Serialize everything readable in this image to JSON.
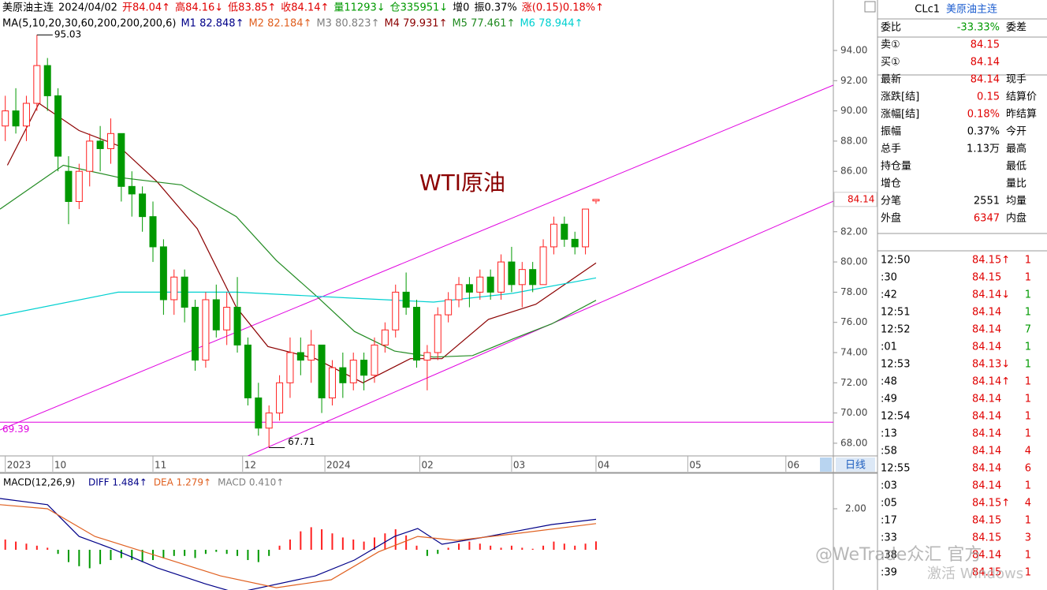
{
  "header": {
    "info": [
      {
        "text": "美原油主连",
        "color": "#000000"
      },
      {
        "text": "2024/04/02",
        "color": "#000000"
      },
      {
        "text": "开84.04↑",
        "color": "#e00000"
      },
      {
        "text": "高84.16↓",
        "color": "#e00000"
      },
      {
        "text": "低83.85↑",
        "color": "#e00000"
      },
      {
        "text": "收84.14↑",
        "color": "#e00000"
      },
      {
        "text": "量11293↓",
        "color": "#009900"
      },
      {
        "text": "仓335951↓",
        "color": "#009900"
      },
      {
        "text": "增0",
        "color": "#000000"
      },
      {
        "text": "振0.37%",
        "color": "#000000"
      },
      {
        "text": "涨(0.15)0.18%↑",
        "color": "#e00000"
      }
    ],
    "ma": [
      {
        "text": "MA(5,10,20,30,60,200,200,200,6)",
        "color": "#000000"
      },
      {
        "text": "M1 82.848↑",
        "color": "#000088"
      },
      {
        "text": "M2 82.184↑",
        "color": "#e06020"
      },
      {
        "text": "M3 80.823↑",
        "color": "#808080"
      },
      {
        "text": "M4 79.931↑",
        "color": "#8b0000"
      },
      {
        "text": "M5 77.461↑",
        "color": "#228b22"
      },
      {
        "text": "M6 78.944↑",
        "color": "#00d0d0"
      }
    ]
  },
  "chart_data": {
    "type": "candlestick",
    "title": "WTI原油",
    "up_color": "#ff2020",
    "down_color": "#009900",
    "xlim": [
      -0.5,
      78.5
    ],
    "ylim": [
      67.16,
      97.34
    ],
    "xticks": [
      {
        "value": 0,
        "label": "2023"
      },
      {
        "value": 4.5,
        "label": "10"
      },
      {
        "value": 14,
        "label": "11"
      },
      {
        "value": 22.5,
        "label": "12"
      },
      {
        "value": 30.3,
        "label": "2024"
      },
      {
        "value": 39.3,
        "label": "02"
      },
      {
        "value": 48,
        "label": "03"
      },
      {
        "value": 56,
        "label": "04"
      },
      {
        "value": 64.7,
        "label": "05"
      },
      {
        "value": 74,
        "label": "06"
      }
    ],
    "yticks": [
      {
        "value": 68,
        "label": "68.00"
      },
      {
        "value": 70,
        "label": "70.00"
      },
      {
        "value": 72,
        "label": "72.00"
      },
      {
        "value": 74,
        "label": "74.00"
      },
      {
        "value": 76,
        "label": "76.00"
      },
      {
        "value": 78,
        "label": "78.00"
      },
      {
        "value": 80,
        "label": "80.00"
      },
      {
        "value": 82,
        "label": "82.00"
      },
      {
        "value": 84,
        "label": "84.00"
      },
      {
        "value": 86,
        "label": "86.00"
      },
      {
        "value": 88,
        "label": "88.00"
      },
      {
        "value": 90,
        "label": "90.00"
      },
      {
        "value": 92,
        "label": "92.00"
      },
      {
        "value": 94,
        "label": "94.00"
      }
    ],
    "candles": {
      "open": [
        89,
        90,
        89,
        90.5,
        93,
        91,
        86,
        84,
        86,
        88,
        87.5,
        88.5,
        85,
        84.5,
        83,
        81,
        77.5,
        79,
        77,
        73.5,
        77.5,
        75.5,
        77,
        74.5,
        71,
        69,
        70,
        72,
        74,
        73.5,
        74.5,
        71,
        73,
        72,
        73.5,
        72.5,
        74.5,
        75.5,
        78,
        77,
        73.5,
        74,
        76.5,
        77.5,
        78.5,
        78,
        79,
        78,
        80,
        78.5,
        79.5,
        78.5,
        81,
        82.5,
        81.5,
        81,
        84.04
      ],
      "high": [
        91,
        91.5,
        91,
        95.03,
        93.5,
        91.5,
        87,
        86.5,
        88.5,
        89,
        89.5,
        88.5,
        86,
        85,
        84,
        81.5,
        79.5,
        79.5,
        77.5,
        78,
        78.5,
        78,
        79,
        75,
        72,
        70.5,
        72.5,
        75,
        75,
        75.5,
        74.5,
        73.5,
        74,
        74,
        74,
        75,
        76,
        78.5,
        79.3,
        77.5,
        74.5,
        77,
        78,
        79,
        79,
        79.5,
        79.5,
        80.5,
        81,
        80,
        80,
        81.5,
        83,
        83,
        82,
        83.5,
        84.16
      ],
      "low": [
        88,
        88.5,
        88,
        90,
        90,
        86,
        82.5,
        83.5,
        85,
        86,
        86.5,
        84,
        83,
        82,
        80,
        76.5,
        76.5,
        76,
        72.8,
        73,
        75,
        74.5,
        74,
        70.5,
        68.5,
        67.71,
        69.5,
        71,
        72.5,
        72,
        70,
        70.5,
        71,
        71.5,
        71.5,
        72,
        74,
        75,
        76.5,
        73,
        71.5,
        73.5,
        76,
        77,
        77,
        77.5,
        77.5,
        77.5,
        78,
        77,
        78,
        78.5,
        80.5,
        81,
        80.5,
        80.5,
        83.85
      ],
      "close": [
        90,
        89,
        90.5,
        93,
        91,
        87,
        84,
        86,
        88,
        87.5,
        88.5,
        85,
        84.5,
        83,
        81,
        77.5,
        79,
        77,
        73.5,
        77.5,
        75.5,
        77,
        74.5,
        71,
        69,
        70,
        72,
        74,
        73.5,
        74.5,
        71,
        73,
        72,
        73.5,
        72.5,
        74.5,
        75.5,
        78,
        77,
        73.5,
        74,
        76.5,
        77.5,
        78.5,
        78,
        79,
        78,
        80,
        78.5,
        79.5,
        78.5,
        81,
        82.5,
        81.5,
        81,
        83.5,
        84.14
      ]
    },
    "moving_averages": [
      {
        "color": "#8b0000",
        "x": [
          0.2,
          3.2,
          7.0,
          10.7,
          14.4,
          18.2,
          21.9,
          24.9,
          29.4,
          33.9,
          38.4,
          41.4,
          45.8,
          50.3,
          56
        ],
        "values": [
          86.4,
          90.5,
          88.7,
          87.7,
          85.3,
          82.2,
          77.0,
          74.4,
          73.6,
          72.0,
          73.6,
          73.6,
          76.2,
          77.2,
          79.931
        ]
      },
      {
        "color": "#228b22",
        "x": [
          -0.5,
          5.5,
          10.7,
          16.7,
          21.9,
          25.7,
          29.4,
          33.1,
          36.9,
          40.6,
          44.3,
          48.1,
          51.8,
          56
        ],
        "values": [
          83.5,
          86.4,
          85.6,
          85.1,
          83.0,
          80.1,
          77.8,
          75.4,
          74.1,
          73.7,
          73.8,
          74.9,
          75.9,
          77.461
        ]
      },
      {
        "color": "#00d0d0",
        "x": [
          -0.5,
          10.7,
          21.9,
          33.1,
          40.6,
          48.1,
          56
        ],
        "values": [
          76.45,
          78.0,
          78.0,
          77.6,
          77.34,
          77.92,
          78.944
        ]
      }
    ],
    "channel_lines": [
      {
        "color": "#e000e0",
        "x": [
          -0.5,
          78.5
        ],
        "values": [
          68.88,
          91.7
        ]
      },
      {
        "color": "#e000e0",
        "x": [
          23,
          78.5
        ],
        "values": [
          67.16,
          84.02
        ]
      }
    ],
    "hline": {
      "value": 69.39,
      "color": "#e000e0"
    },
    "period": "日线"
  },
  "macd": {
    "type": "macd",
    "title": "MACD(12,26,9)",
    "labels": [
      {
        "text": "DIFF 1.484↑",
        "color": "#000088"
      },
      {
        "text": "DEA 1.279↑",
        "color": "#e06020"
      },
      {
        "text": "MACD 0.410↑",
        "color": "#808080"
      }
    ],
    "ylim": [
      -1.96,
      3.73
    ],
    "yticks": [
      {
        "value": 2,
        "label": "2.00"
      }
    ],
    "diff": {
      "color": "#000088",
      "x": [
        -0.5,
        4,
        7,
        10,
        14.4,
        18.9,
        21.9,
        29.4,
        33.1,
        36.9,
        39.1,
        41.4,
        45.8,
        51.8,
        56
      ],
      "values": [
        2.5,
        2.2,
        0.65,
        0.08,
        -0.88,
        -1.65,
        -2.1,
        -1.27,
        -0.5,
        0.65,
        1.04,
        0.27,
        0.65,
        1.23,
        1.484
      ]
    },
    "dea": {
      "color": "#e06020",
      "x": [
        -0.5,
        4,
        8.5,
        14.4,
        20.4,
        25.7,
        30.9,
        35.4,
        39.1,
        42.8,
        48.1,
        56
      ],
      "values": [
        2.2,
        2.0,
        0.65,
        -0.3,
        -1.27,
        -1.85,
        -1.46,
        -0.1,
        0.65,
        0.46,
        0.77,
        1.279
      ]
    },
    "hist": [
      0.5,
      0.4,
      0.3,
      0.2,
      0.1,
      -0.2,
      -0.6,
      -0.8,
      -0.9,
      -0.7,
      -0.5,
      -0.4,
      -0.5,
      -0.6,
      -0.5,
      -0.4,
      -0.3,
      -0.3,
      -0.4,
      -0.2,
      -0.1,
      -0.2,
      -0.3,
      -0.5,
      -0.6,
      -0.3,
      0.2,
      0.5,
      0.9,
      1.1,
      1.0,
      0.8,
      0.6,
      0.5,
      0.4,
      0.6,
      0.8,
      1.0,
      0.7,
      0.2,
      -0.3,
      -0.2,
      0.1,
      0.3,
      0.4,
      0.3,
      0.2,
      0.1,
      0.2,
      0.1,
      0.05,
      0.2,
      0.4,
      0.3,
      0.2,
      0.3,
      0.41
    ]
  },
  "panel": {
    "code": "CLc1",
    "name": "美原油主连",
    "rows": [
      {
        "label": "委比",
        "value": "-33.33%",
        "color": "#009900",
        "label2": "委差"
      },
      {
        "label": "卖①",
        "value": "84.15",
        "color": "#e00000"
      },
      {
        "label": "买①",
        "value": "84.14",
        "color": "#e00000"
      },
      {
        "label": "最新",
        "value": "84.14",
        "color": "#e00000",
        "label2": "现手"
      },
      {
        "label": "涨跌[结]",
        "value": "0.15",
        "color": "#e00000",
        "label2": "结算价"
      },
      {
        "label": "涨幅[结]",
        "value": "0.18%",
        "color": "#e00000",
        "label2": "昨结算"
      },
      {
        "label": "振幅",
        "value": "0.37%",
        "color": "#000000",
        "label2": "今开"
      },
      {
        "label": "总手",
        "value": "1.13万",
        "color": "#000000",
        "label2": "最高"
      },
      {
        "label": "持仓量",
        "label2": "最低"
      },
      {
        "label": "增仓",
        "label2": "量比"
      },
      {
        "label": "分笔",
        "value": "2551",
        "color": "#000000",
        "label2": "均量"
      },
      {
        "label": "外盘",
        "value": "6347",
        "color": "#e00000",
        "label2": "内盘"
      }
    ],
    "trades": [
      {
        "time": "12:50",
        "price": "84.15↑",
        "vol": "1",
        "color": "#e00000"
      },
      {
        "time": ":30",
        "price": "84.15",
        "vol": "1",
        "color": "#e00000"
      },
      {
        "time": ":42",
        "price": "84.14↓",
        "vol": "1",
        "color": "#009900"
      },
      {
        "time": "12:51",
        "price": "84.14",
        "vol": "1",
        "color": "#009900"
      },
      {
        "time": "12:52",
        "price": "84.14",
        "vol": "7",
        "color": "#009900"
      },
      {
        "time": ":01",
        "price": "84.14",
        "vol": "1",
        "color": "#009900"
      },
      {
        "time": "12:53",
        "price": "84.13↓",
        "vol": "1",
        "color": "#009900"
      },
      {
        "time": ":48",
        "price": "84.14↑",
        "vol": "1",
        "color": "#e00000"
      },
      {
        "time": ":49",
        "price": "84.14",
        "vol": "1",
        "color": "#e00000"
      },
      {
        "time": "12:54",
        "price": "84.14",
        "vol": "1",
        "color": "#e00000"
      },
      {
        "time": ":13",
        "price": "84.14",
        "vol": "1",
        "color": "#e00000"
      },
      {
        "time": ":58",
        "price": "84.14",
        "vol": "4",
        "color": "#e00000"
      },
      {
        "time": "12:55",
        "price": "84.14",
        "vol": "6",
        "color": "#e00000"
      },
      {
        "time": ":03",
        "price": "84.14",
        "vol": "1",
        "color": "#e00000"
      },
      {
        "time": ":05",
        "price": "84.15↑",
        "vol": "4",
        "color": "#e00000"
      },
      {
        "time": ":17",
        "price": "84.15",
        "vol": "1",
        "color": "#e00000"
      },
      {
        "time": ":33",
        "price": "84.15",
        "vol": "3",
        "color": "#e00000"
      },
      {
        "time": ":38",
        "price": "84.14",
        "vol": "1",
        "color": "#e00000"
      },
      {
        "time": ":39",
        "price": "84.15",
        "vol": "1",
        "color": "#e00000"
      }
    ]
  },
  "watermarks": [
    "@WeTrade众汇 官方",
    "激活 Windows"
  ]
}
